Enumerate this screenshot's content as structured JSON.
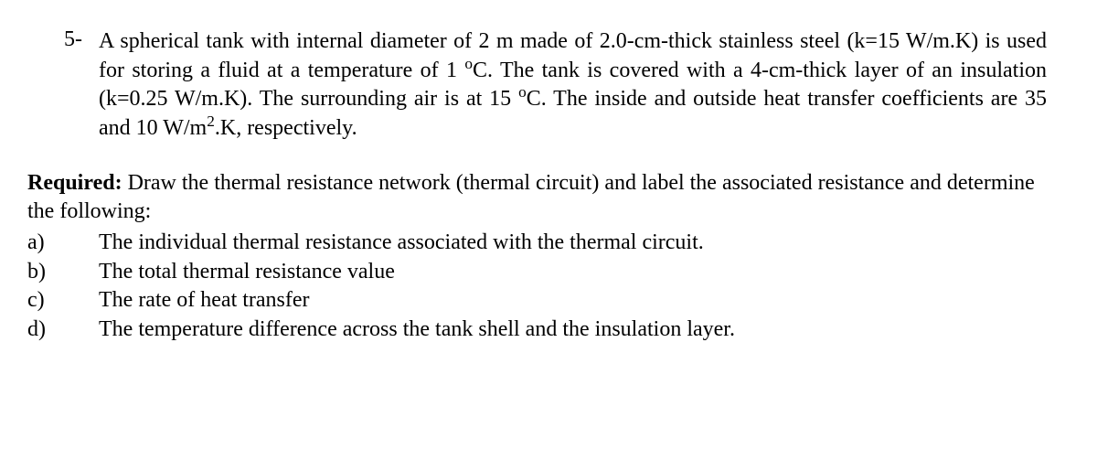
{
  "problem": {
    "number": "5-",
    "text_parts": {
      "p1": "A spherical tank with internal diameter of 2 m made of 2.0-cm-thick stainless steel (k=15 W/m.K) is used for storing a fluid at a temperature of 1 ",
      "deg1": "o",
      "p2": "C. The tank is covered with a 4-cm-thick layer of an insulation (k=0.25 W/m.K). The surrounding air is at 15 ",
      "deg2": "o",
      "p3": "C. The inside and outside heat transfer coefficients are 35 and 10 W/m",
      "sq": "2",
      "p4": ".K, respectively."
    }
  },
  "required": {
    "label": "Required:",
    "intro": " Draw the thermal resistance network (thermal circuit) and label the associated resistance and determine the following:"
  },
  "subitems": {
    "a": {
      "letter": "a)",
      "text": "The individual thermal resistance associated with the thermal circuit."
    },
    "b": {
      "letter": "b)",
      "text": "The total thermal resistance value"
    },
    "c": {
      "letter": "c)",
      "text": "The rate of heat transfer"
    },
    "d": {
      "letter": "d)",
      "text": "The temperature difference across the tank shell and the insulation layer."
    }
  }
}
